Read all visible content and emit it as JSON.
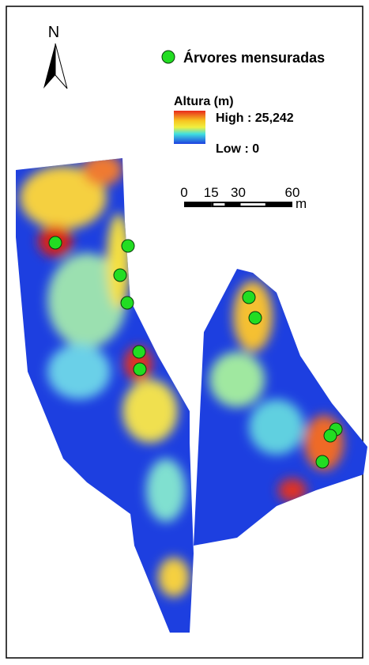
{
  "north_label": "N",
  "legend": {
    "points_label": "Árvores mensuradas",
    "raster_title": "Altura (m)",
    "high_label": "High : 25,242",
    "low_label": "Low : 0"
  },
  "scale_bar": {
    "ticks": [
      0,
      15,
      30,
      60
    ],
    "unit": "m"
  }
}
